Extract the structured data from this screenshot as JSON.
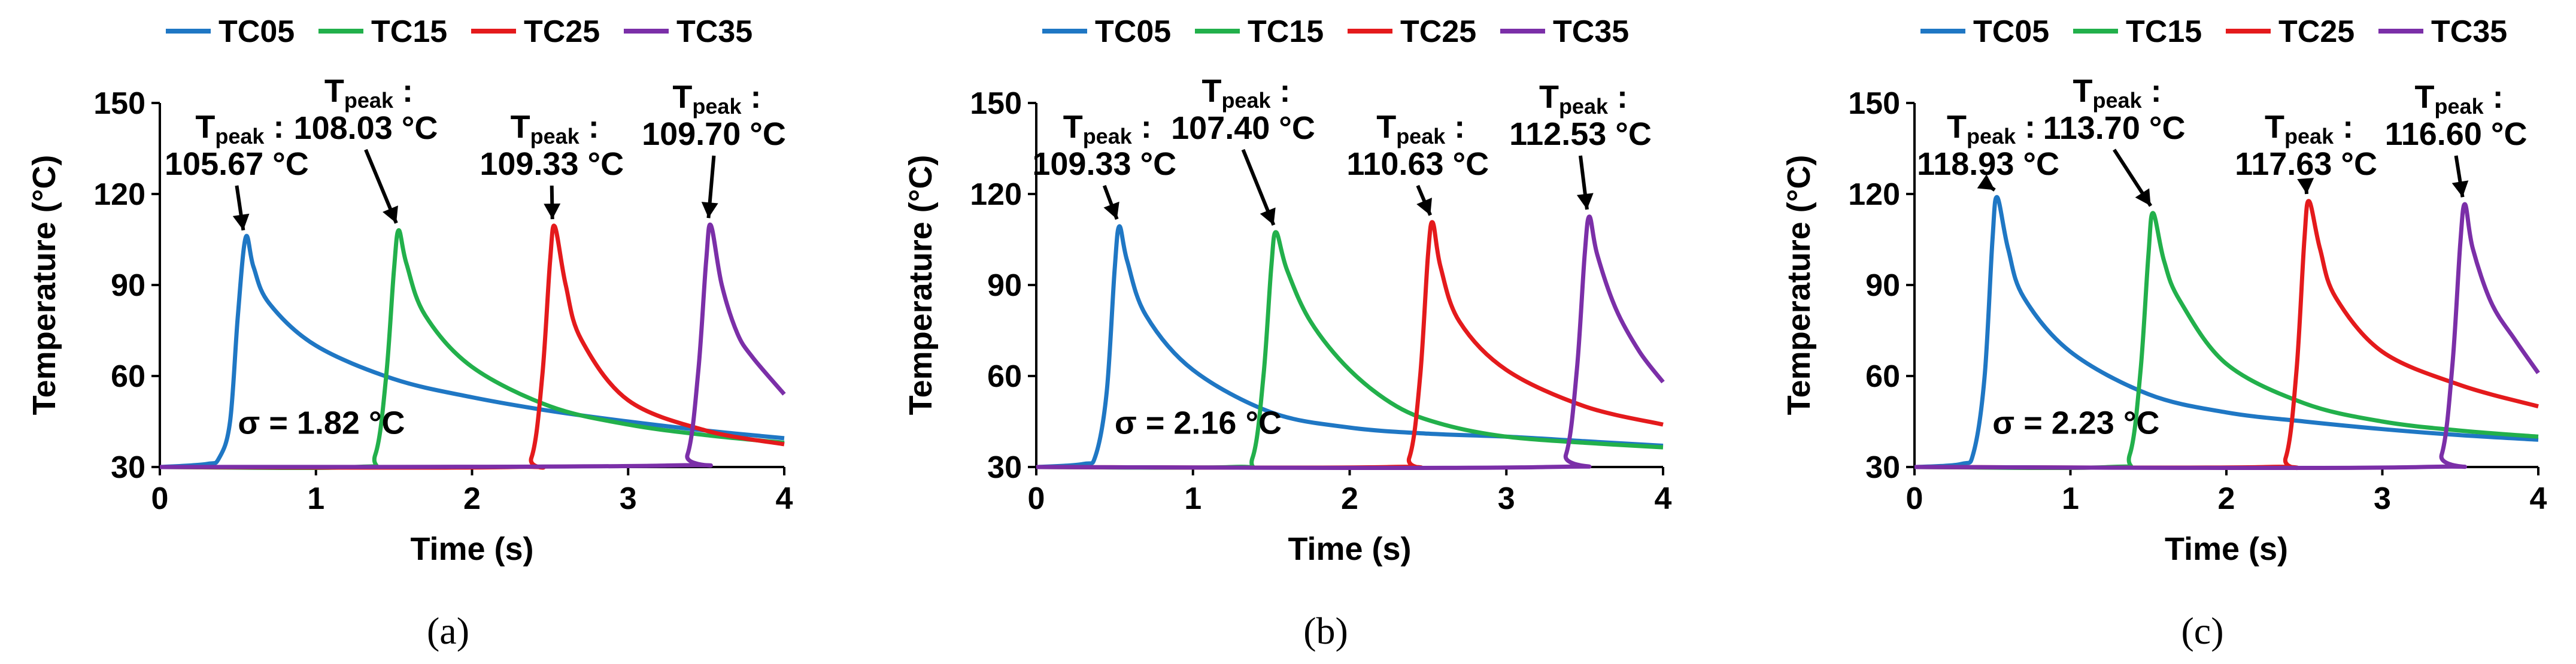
{
  "colors": {
    "TC05": "#1f77c4",
    "TC15": "#22b04b",
    "TC25": "#e41a1c",
    "TC35": "#7b2fa8",
    "axis": "#000000"
  },
  "chart_data": [
    {
      "type": "line",
      "panel_label": "(a)",
      "xlabel": "Time (s)",
      "ylabel": "Temperature (°C)",
      "xlim": [
        0,
        4
      ],
      "ylim": [
        30,
        150
      ],
      "xticks": [
        "0",
        "1",
        "2",
        "3",
        "4"
      ],
      "yticks": [
        "30",
        "60",
        "90",
        "120",
        "150"
      ],
      "legend": [
        "TC05",
        "TC15",
        "TC25",
        "TC35"
      ],
      "sigma_label": "σ = 1.82 °C",
      "series": [
        {
          "name": "TC05",
          "t_peak": 0.55,
          "peak": 105.67,
          "base": 30,
          "tail": 39.5,
          "tau": 1.1,
          "x": [
            0,
            0.3,
            0.38,
            0.45,
            0.5,
            0.55,
            0.6,
            0.7,
            1.0,
            1.5,
            2.0,
            2.5,
            3.0,
            3.5,
            4.0
          ],
          "y": [
            30,
            31,
            33,
            45,
            80,
            105.67,
            96,
            84,
            70,
            59,
            53,
            48.5,
            45,
            42,
            39.5
          ]
        },
        {
          "name": "TC15",
          "t_peak": 1.53,
          "peak": 108.03,
          "base": 30,
          "tail": 38,
          "x": [
            0,
            1.25,
            1.38,
            1.45,
            1.5,
            1.53,
            1.58,
            1.7,
            2.0,
            2.5,
            3.0,
            3.5,
            4.0
          ],
          "y": [
            30,
            30,
            34,
            60,
            95,
            108.03,
            97,
            80,
            63,
            50,
            44,
            40.5,
            38
          ]
        },
        {
          "name": "TC25",
          "t_peak": 2.53,
          "peak": 109.33,
          "base": 30,
          "tail": 37.5,
          "x": [
            0,
            2.25,
            2.38,
            2.45,
            2.5,
            2.53,
            2.6,
            2.7,
            3.0,
            3.5,
            4.0
          ],
          "y": [
            30,
            30,
            33,
            60,
            98,
            109.33,
            90,
            72,
            52,
            42,
            37.5
          ]
        },
        {
          "name": "TC35",
          "t_peak": 3.53,
          "peak": 109.7,
          "base": 30,
          "tail": 54,
          "x": [
            0,
            3.25,
            3.38,
            3.45,
            3.5,
            3.53,
            3.6,
            3.7,
            3.8,
            4.0
          ],
          "y": [
            30,
            30.5,
            34,
            62,
            98,
            109.7,
            90,
            74,
            66,
            54
          ]
        }
      ],
      "annotations": [
        {
          "series": "TC05",
          "value": "105.67 °C"
        },
        {
          "series": "TC15",
          "value": "108.03 °C"
        },
        {
          "series": "TC25",
          "value": "109.33 °C"
        },
        {
          "series": "TC35",
          "value": "109.70 °C"
        }
      ]
    },
    {
      "type": "line",
      "panel_label": "(b)",
      "xlabel": "Time (s)",
      "ylabel": "Temperature (°C)",
      "xlim": [
        0,
        4
      ],
      "ylim": [
        30,
        150
      ],
      "xticks": [
        "0",
        "1",
        "2",
        "3",
        "4"
      ],
      "yticks": [
        "30",
        "60",
        "90",
        "120",
        "150"
      ],
      "legend": [
        "TC05",
        "TC15",
        "TC25",
        "TC35"
      ],
      "sigma_label": "σ = 2.16 °C",
      "series": [
        {
          "name": "TC05",
          "x": [
            0,
            0.3,
            0.38,
            0.45,
            0.5,
            0.53,
            0.58,
            0.7,
            1.0,
            1.5,
            2.0,
            2.5,
            3.0,
            3.5,
            4.0
          ],
          "y": [
            30,
            31,
            34,
            55,
            95,
            109.33,
            98,
            80,
            62,
            48,
            43,
            41,
            40,
            38.5,
            37
          ]
        },
        {
          "name": "TC15",
          "x": [
            0,
            1.25,
            1.38,
            1.45,
            1.5,
            1.53,
            1.6,
            1.75,
            2.0,
            2.3,
            2.6,
            3.0,
            3.5,
            4.0
          ],
          "y": [
            30,
            30,
            33,
            60,
            96,
            107.4,
            95,
            78,
            62,
            50,
            44,
            40,
            38,
            36.5
          ]
        },
        {
          "name": "TC25",
          "x": [
            0,
            2.25,
            2.38,
            2.45,
            2.5,
            2.53,
            2.58,
            2.7,
            3.0,
            3.5,
            4.0
          ],
          "y": [
            30,
            30,
            33,
            60,
            100,
            110.63,
            96,
            78,
            62,
            50,
            44
          ]
        },
        {
          "name": "TC35",
          "x": [
            0,
            3.25,
            3.38,
            3.45,
            3.5,
            3.53,
            3.58,
            3.7,
            3.85,
            4.0
          ],
          "y": [
            30,
            30,
            34,
            62,
            100,
            112.53,
            100,
            82,
            68,
            58
          ]
        }
      ],
      "annotations": [
        {
          "series": "TC05",
          "value": "109.33 °C"
        },
        {
          "series": "TC15",
          "value": "107.40 °C"
        },
        {
          "series": "TC25",
          "value": "110.63 °C"
        },
        {
          "series": "TC35",
          "value": "112.53 °C"
        }
      ]
    },
    {
      "type": "line",
      "panel_label": "(c)",
      "xlabel": "Time (s)",
      "ylabel": "Temperature (°C)",
      "xlim": [
        0,
        4
      ],
      "ylim": [
        30,
        150
      ],
      "xticks": [
        "0",
        "1",
        "2",
        "3",
        "4"
      ],
      "yticks": [
        "30",
        "60",
        "90",
        "120",
        "150"
      ],
      "legend": [
        "TC05",
        "TC15",
        "TC25",
        "TC35"
      ],
      "sigma_label": "σ = 2.23 °C",
      "series": [
        {
          "name": "TC05",
          "x": [
            0,
            0.3,
            0.38,
            0.45,
            0.5,
            0.53,
            0.6,
            0.7,
            1.0,
            1.5,
            2.0,
            2.5,
            3.0,
            3.5,
            4.0
          ],
          "y": [
            30,
            31,
            35,
            60,
            105,
            118.93,
            102,
            86,
            68,
            54,
            48,
            45,
            42.5,
            40.5,
            39
          ]
        },
        {
          "name": "TC15",
          "x": [
            0,
            1.25,
            1.38,
            1.45,
            1.5,
            1.53,
            1.6,
            1.7,
            2.0,
            2.5,
            3.0,
            3.5,
            4.0
          ],
          "y": [
            30,
            30,
            34,
            62,
            100,
            113.7,
            98,
            85,
            64,
            51,
            45,
            42,
            40
          ]
        },
        {
          "name": "TC25",
          "x": [
            0,
            2.25,
            2.38,
            2.45,
            2.5,
            2.53,
            2.6,
            2.7,
            3.0,
            3.5,
            4.0
          ],
          "y": [
            30,
            30,
            33,
            62,
            105,
            117.63,
            102,
            86,
            68,
            57,
            50
          ]
        },
        {
          "name": "TC35",
          "x": [
            0,
            3.25,
            3.38,
            3.45,
            3.5,
            3.53,
            3.58,
            3.7,
            3.85,
            4.0
          ],
          "y": [
            30,
            30,
            34,
            64,
            104,
            116.6,
            102,
            84,
            72,
            61
          ]
        }
      ],
      "annotations": [
        {
          "series": "TC05",
          "value": "118.93 °C"
        },
        {
          "series": "TC15",
          "value": "113.70 °C"
        },
        {
          "series": "TC25",
          "value": "117.63 °C"
        },
        {
          "series": "TC35",
          "value": "116.60 °C"
        }
      ]
    }
  ],
  "labels": {
    "t_main": "T",
    "t_sub": "peak",
    "colon": ":"
  }
}
